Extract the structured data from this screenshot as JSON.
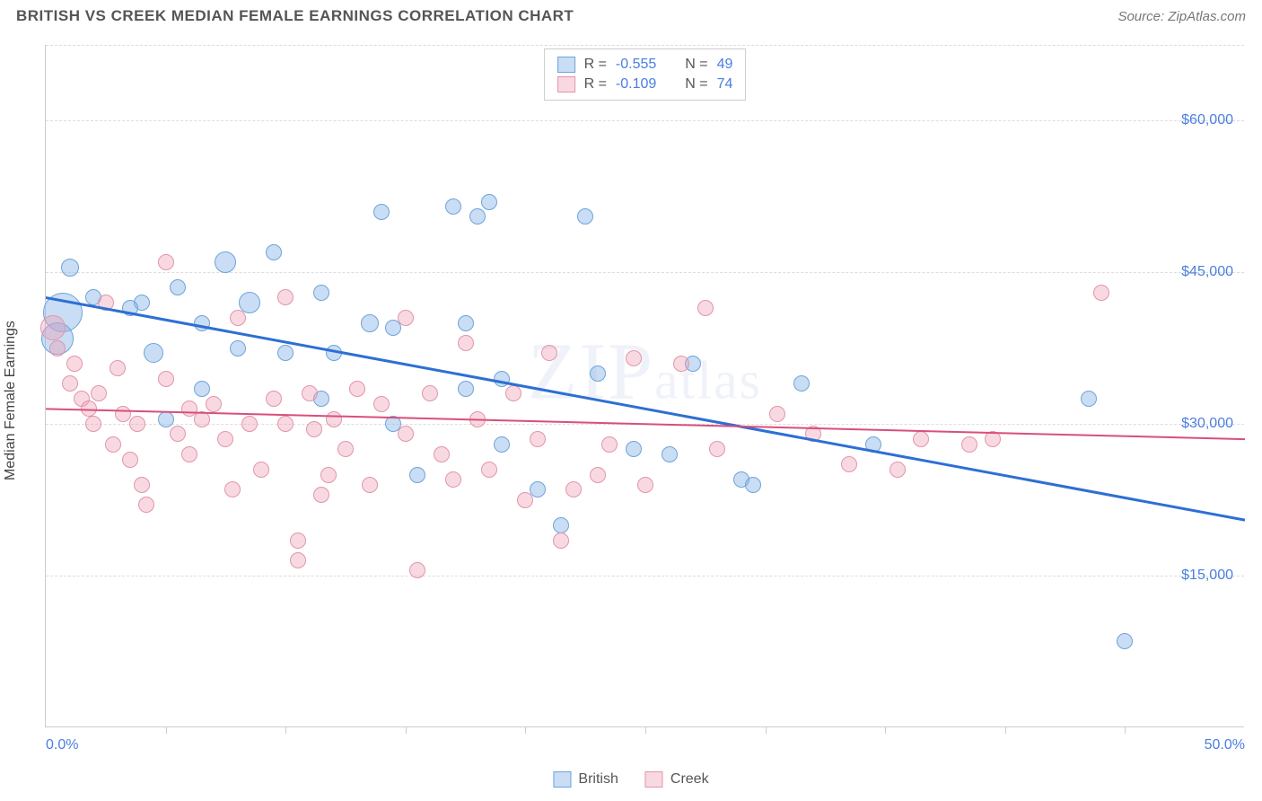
{
  "header": {
    "title": "BRITISH VS CREEK MEDIAN FEMALE EARNINGS CORRELATION CHART",
    "source": "Source: ZipAtlas.com"
  },
  "chart": {
    "type": "scatter",
    "ylabel": "Median Female Earnings",
    "xlim": [
      0,
      50
    ],
    "ylim": [
      0,
      67500
    ],
    "background_color": "#ffffff",
    "grid_color": "#dddddd",
    "grid_dash": "4,4",
    "axis_color": "#cccccc",
    "watermark": "ZIPatlas",
    "yticks": [
      {
        "value": 60000,
        "label": "$60,000"
      },
      {
        "value": 45000,
        "label": "$45,000"
      },
      {
        "value": 30000,
        "label": "$30,000"
      },
      {
        "value": 15000,
        "label": "$15,000"
      }
    ],
    "xticks_minor": [
      5,
      10,
      15,
      20,
      25,
      30,
      35,
      40,
      45
    ],
    "xticks_labeled": [
      {
        "value": 0,
        "label": "0.0%"
      },
      {
        "value": 50,
        "label": "50.0%"
      }
    ],
    "series": [
      {
        "name": "British",
        "fill_color": "rgba(135,180,230,0.45)",
        "stroke_color": "#6fa3db",
        "line_color": "#2d6fd4",
        "line_width": 3,
        "stats": {
          "R": "-0.555",
          "N": "49"
        },
        "trend": {
          "x1": 0,
          "y1": 42500,
          "x2": 50,
          "y2": 20500
        },
        "points": [
          {
            "x": 1.0,
            "y": 45500,
            "r": 10
          },
          {
            "x": 0.7,
            "y": 41000,
            "r": 22
          },
          {
            "x": 0.5,
            "y": 38500,
            "r": 18
          },
          {
            "x": 4.0,
            "y": 42000,
            "r": 9
          },
          {
            "x": 2.0,
            "y": 42500,
            "r": 9
          },
          {
            "x": 3.5,
            "y": 41500,
            "r": 9
          },
          {
            "x": 5.5,
            "y": 43500,
            "r": 9
          },
          {
            "x": 6.5,
            "y": 40000,
            "r": 9
          },
          {
            "x": 4.5,
            "y": 37000,
            "r": 11
          },
          {
            "x": 5.0,
            "y": 30500,
            "r": 9
          },
          {
            "x": 6.5,
            "y": 33500,
            "r": 9
          },
          {
            "x": 7.5,
            "y": 46000,
            "r": 12
          },
          {
            "x": 9.5,
            "y": 47000,
            "r": 9
          },
          {
            "x": 8.5,
            "y": 42000,
            "r": 12
          },
          {
            "x": 8.0,
            "y": 37500,
            "r": 9
          },
          {
            "x": 10.0,
            "y": 37000,
            "r": 9
          },
          {
            "x": 11.5,
            "y": 43000,
            "r": 9
          },
          {
            "x": 12.0,
            "y": 37000,
            "r": 9
          },
          {
            "x": 14.0,
            "y": 51000,
            "r": 9
          },
          {
            "x": 13.5,
            "y": 40000,
            "r": 10
          },
          {
            "x": 14.5,
            "y": 39500,
            "r": 9
          },
          {
            "x": 11.5,
            "y": 32500,
            "r": 9
          },
          {
            "x": 15.5,
            "y": 25000,
            "r": 9
          },
          {
            "x": 14.5,
            "y": 30000,
            "r": 9
          },
          {
            "x": 17.0,
            "y": 51500,
            "r": 9
          },
          {
            "x": 18.5,
            "y": 52000,
            "r": 9
          },
          {
            "x": 18.0,
            "y": 50500,
            "r": 9
          },
          {
            "x": 17.5,
            "y": 40000,
            "r": 9
          },
          {
            "x": 17.5,
            "y": 33500,
            "r": 9
          },
          {
            "x": 19.0,
            "y": 28000,
            "r": 9
          },
          {
            "x": 19.0,
            "y": 34500,
            "r": 9
          },
          {
            "x": 20.5,
            "y": 23500,
            "r": 9
          },
          {
            "x": 21.5,
            "y": 20000,
            "r": 9
          },
          {
            "x": 22.5,
            "y": 50500,
            "r": 9
          },
          {
            "x": 23.0,
            "y": 35000,
            "r": 9
          },
          {
            "x": 24.5,
            "y": 27500,
            "r": 9
          },
          {
            "x": 26.0,
            "y": 27000,
            "r": 9
          },
          {
            "x": 27.0,
            "y": 36000,
            "r": 9
          },
          {
            "x": 29.0,
            "y": 24500,
            "r": 9
          },
          {
            "x": 29.5,
            "y": 24000,
            "r": 9
          },
          {
            "x": 31.5,
            "y": 34000,
            "r": 9
          },
          {
            "x": 34.5,
            "y": 28000,
            "r": 9
          },
          {
            "x": 43.5,
            "y": 32500,
            "r": 9
          },
          {
            "x": 45.0,
            "y": 8500,
            "r": 9
          }
        ]
      },
      {
        "name": "Creek",
        "fill_color": "rgba(240,160,180,0.4)",
        "stroke_color": "#e295aa",
        "line_color": "#d94f7a",
        "line_width": 2,
        "stats": {
          "R": "-0.109",
          "N": "74"
        },
        "trend": {
          "x1": 0,
          "y1": 31500,
          "x2": 50,
          "y2": 28500
        },
        "points": [
          {
            "x": 0.3,
            "y": 39500,
            "r": 14
          },
          {
            "x": 0.5,
            "y": 37500,
            "r": 9
          },
          {
            "x": 1.0,
            "y": 34000,
            "r": 9
          },
          {
            "x": 1.2,
            "y": 36000,
            "r": 9
          },
          {
            "x": 1.5,
            "y": 32500,
            "r": 9
          },
          {
            "x": 1.8,
            "y": 31500,
            "r": 9
          },
          {
            "x": 2.2,
            "y": 33000,
            "r": 9
          },
          {
            "x": 2.0,
            "y": 30000,
            "r": 9
          },
          {
            "x": 2.5,
            "y": 42000,
            "r": 9
          },
          {
            "x": 2.8,
            "y": 28000,
            "r": 9
          },
          {
            "x": 3.0,
            "y": 35500,
            "r": 9
          },
          {
            "x": 3.2,
            "y": 31000,
            "r": 9
          },
          {
            "x": 3.5,
            "y": 26500,
            "r": 9
          },
          {
            "x": 3.8,
            "y": 30000,
            "r": 9
          },
          {
            "x": 4.0,
            "y": 24000,
            "r": 9
          },
          {
            "x": 4.2,
            "y": 22000,
            "r": 9
          },
          {
            "x": 5.0,
            "y": 46000,
            "r": 9
          },
          {
            "x": 5.0,
            "y": 34500,
            "r": 9
          },
          {
            "x": 5.5,
            "y": 29000,
            "r": 9
          },
          {
            "x": 6.0,
            "y": 31500,
            "r": 9
          },
          {
            "x": 6.0,
            "y": 27000,
            "r": 9
          },
          {
            "x": 6.5,
            "y": 30500,
            "r": 9
          },
          {
            "x": 7.0,
            "y": 32000,
            "r": 9
          },
          {
            "x": 7.5,
            "y": 28500,
            "r": 9
          },
          {
            "x": 7.8,
            "y": 23500,
            "r": 9
          },
          {
            "x": 8.0,
            "y": 40500,
            "r": 9
          },
          {
            "x": 8.5,
            "y": 30000,
            "r": 9
          },
          {
            "x": 9.0,
            "y": 25500,
            "r": 9
          },
          {
            "x": 9.5,
            "y": 32500,
            "r": 9
          },
          {
            "x": 10.0,
            "y": 42500,
            "r": 9
          },
          {
            "x": 10.0,
            "y": 30000,
            "r": 9
          },
          {
            "x": 10.5,
            "y": 16500,
            "r": 9
          },
          {
            "x": 10.5,
            "y": 18500,
            "r": 9
          },
          {
            "x": 11.0,
            "y": 33000,
            "r": 9
          },
          {
            "x": 11.2,
            "y": 29500,
            "r": 9
          },
          {
            "x": 11.5,
            "y": 23000,
            "r": 9
          },
          {
            "x": 11.8,
            "y": 25000,
            "r": 9
          },
          {
            "x": 12.0,
            "y": 30500,
            "r": 9
          },
          {
            "x": 12.5,
            "y": 27500,
            "r": 9
          },
          {
            "x": 13.0,
            "y": 33500,
            "r": 9
          },
          {
            "x": 13.5,
            "y": 24000,
            "r": 9
          },
          {
            "x": 14.0,
            "y": 32000,
            "r": 9
          },
          {
            "x": 15.0,
            "y": 40500,
            "r": 9
          },
          {
            "x": 15.0,
            "y": 29000,
            "r": 9
          },
          {
            "x": 15.5,
            "y": 15500,
            "r": 9
          },
          {
            "x": 16.0,
            "y": 33000,
            "r": 9
          },
          {
            "x": 16.5,
            "y": 27000,
            "r": 9
          },
          {
            "x": 17.5,
            "y": 38000,
            "r": 9
          },
          {
            "x": 17.0,
            "y": 24500,
            "r": 9
          },
          {
            "x": 18.0,
            "y": 30500,
            "r": 9
          },
          {
            "x": 18.5,
            "y": 25500,
            "r": 9
          },
          {
            "x": 19.5,
            "y": 33000,
            "r": 9
          },
          {
            "x": 20.0,
            "y": 22500,
            "r": 9
          },
          {
            "x": 20.5,
            "y": 28500,
            "r": 9
          },
          {
            "x": 21.0,
            "y": 37000,
            "r": 9
          },
          {
            "x": 21.5,
            "y": 18500,
            "r": 9
          },
          {
            "x": 22.0,
            "y": 23500,
            "r": 9
          },
          {
            "x": 23.0,
            "y": 25000,
            "r": 9
          },
          {
            "x": 23.5,
            "y": 28000,
            "r": 9
          },
          {
            "x": 24.5,
            "y": 36500,
            "r": 9
          },
          {
            "x": 25.0,
            "y": 24000,
            "r": 9
          },
          {
            "x": 26.5,
            "y": 36000,
            "r": 9
          },
          {
            "x": 27.5,
            "y": 41500,
            "r": 9
          },
          {
            "x": 28.0,
            "y": 27500,
            "r": 9
          },
          {
            "x": 30.5,
            "y": 31000,
            "r": 9
          },
          {
            "x": 32.0,
            "y": 29000,
            "r": 9
          },
          {
            "x": 33.5,
            "y": 26000,
            "r": 9
          },
          {
            "x": 35.5,
            "y": 25500,
            "r": 9
          },
          {
            "x": 36.5,
            "y": 28500,
            "r": 9
          },
          {
            "x": 38.5,
            "y": 28000,
            "r": 9
          },
          {
            "x": 39.5,
            "y": 28500,
            "r": 9
          },
          {
            "x": 44.0,
            "y": 43000,
            "r": 9
          }
        ]
      }
    ]
  }
}
